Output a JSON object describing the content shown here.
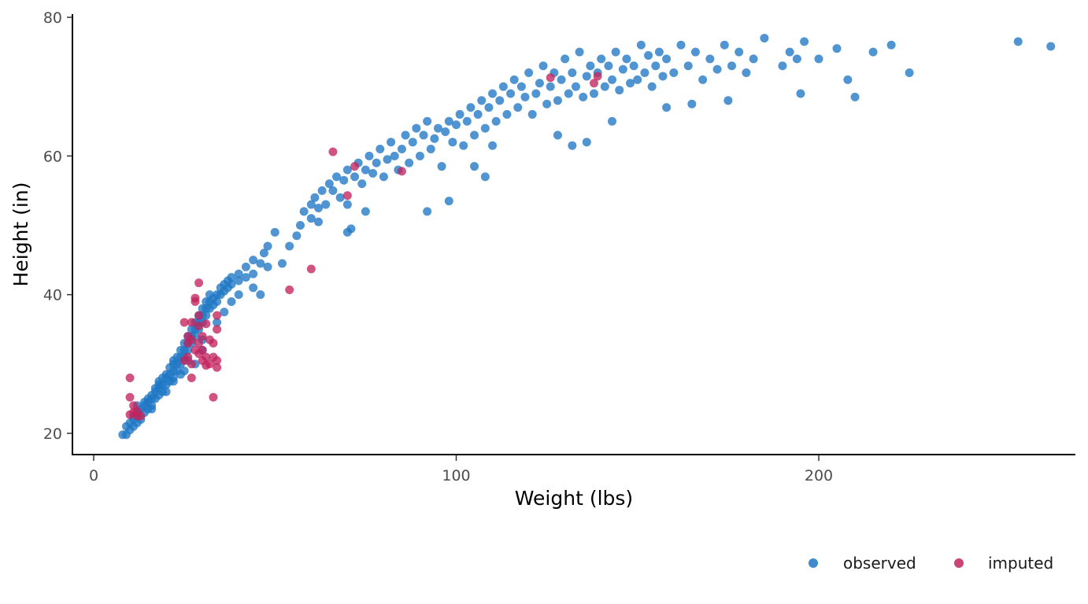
{
  "chart_data": {
    "type": "scatter",
    "title": "",
    "xlabel": "Weight (lbs)",
    "ylabel": "Height (in)",
    "xlim": [
      -6,
      272
    ],
    "ylim": [
      16.8,
      80.5
    ],
    "x_ticks": [
      0,
      100,
      200
    ],
    "y_ticks": [
      20,
      40,
      60,
      80
    ],
    "x_tick_labels": [
      "0",
      "100",
      "200"
    ],
    "y_tick_labels": [
      "20",
      "40",
      "60",
      "80"
    ],
    "grid": false,
    "legend_position": "bottom-right",
    "series": [
      {
        "name": "observed",
        "color": "#1f77c4",
        "points": [
          [
            8,
            19.8
          ],
          [
            9,
            19.8
          ],
          [
            9,
            21
          ],
          [
            10,
            20.5
          ],
          [
            10,
            21.5
          ],
          [
            11,
            21
          ],
          [
            11,
            22
          ],
          [
            11,
            22.5
          ],
          [
            12,
            21.5
          ],
          [
            12,
            22.5
          ],
          [
            12,
            23
          ],
          [
            13,
            22
          ],
          [
            13,
            23.5
          ],
          [
            14,
            23
          ],
          [
            14,
            24
          ],
          [
            14,
            24.5
          ],
          [
            15,
            23.5
          ],
          [
            15,
            24.5
          ],
          [
            15,
            25
          ],
          [
            16,
            24
          ],
          [
            16,
            25
          ],
          [
            16,
            25.5
          ],
          [
            17,
            25
          ],
          [
            17,
            26
          ],
          [
            17,
            26.5
          ],
          [
            18,
            25.5
          ],
          [
            18,
            26.5
          ],
          [
            18,
            27
          ],
          [
            19,
            26
          ],
          [
            19,
            27
          ],
          [
            19,
            28
          ],
          [
            20,
            27
          ],
          [
            20,
            28
          ],
          [
            20,
            28.5
          ],
          [
            21,
            27.5
          ],
          [
            21,
            28.5
          ],
          [
            21,
            29.5
          ],
          [
            22,
            28
          ],
          [
            22,
            29
          ],
          [
            22,
            30
          ],
          [
            23,
            29
          ],
          [
            23,
            30
          ],
          [
            23,
            31
          ],
          [
            24,
            30
          ],
          [
            24,
            31
          ],
          [
            24,
            32
          ],
          [
            25,
            31
          ],
          [
            25,
            32
          ],
          [
            25,
            33
          ],
          [
            26,
            32
          ],
          [
            26,
            33
          ],
          [
            26,
            34
          ],
          [
            27,
            33
          ],
          [
            27,
            34
          ],
          [
            27,
            35
          ],
          [
            28,
            34
          ],
          [
            28,
            35
          ],
          [
            28,
            36
          ],
          [
            29,
            35
          ],
          [
            29,
            36
          ],
          [
            29,
            37
          ],
          [
            30,
            36
          ],
          [
            30,
            37
          ],
          [
            30,
            38
          ],
          [
            31,
            37
          ],
          [
            31,
            38
          ],
          [
            31,
            39
          ],
          [
            32,
            38
          ],
          [
            32,
            39
          ],
          [
            32,
            40
          ],
          [
            33,
            38.5
          ],
          [
            33,
            39.5
          ],
          [
            34,
            39
          ],
          [
            34,
            40
          ],
          [
            35,
            40
          ],
          [
            35,
            41
          ],
          [
            36,
            40.5
          ],
          [
            36,
            41.5
          ],
          [
            37,
            41
          ],
          [
            37,
            42
          ],
          [
            38,
            41.5
          ],
          [
            38,
            42.5
          ],
          [
            40,
            42
          ],
          [
            40,
            43
          ],
          [
            42,
            42.5
          ],
          [
            42,
            44
          ],
          [
            44,
            43
          ],
          [
            44,
            45
          ],
          [
            46,
            44.5
          ],
          [
            47,
            46
          ],
          [
            48,
            47
          ],
          [
            50,
            49
          ],
          [
            54,
            47
          ],
          [
            56,
            48.5
          ],
          [
            57,
            50
          ],
          [
            58,
            52
          ],
          [
            60,
            51
          ],
          [
            60,
            53
          ],
          [
            61,
            54
          ],
          [
            62,
            52.5
          ],
          [
            63,
            55
          ],
          [
            64,
            53
          ],
          [
            65,
            56
          ],
          [
            66,
            55
          ],
          [
            67,
            57
          ],
          [
            68,
            54
          ],
          [
            69,
            56.5
          ],
          [
            70,
            58
          ],
          [
            70,
            53
          ],
          [
            71,
            49.5
          ],
          [
            72,
            57
          ],
          [
            73,
            59
          ],
          [
            74,
            56
          ],
          [
            75,
            58
          ],
          [
            76,
            60
          ],
          [
            77,
            57.5
          ],
          [
            78,
            59
          ],
          [
            79,
            61
          ],
          [
            80,
            57
          ],
          [
            81,
            59.5
          ],
          [
            82,
            62
          ],
          [
            83,
            60
          ],
          [
            84,
            58
          ],
          [
            85,
            61
          ],
          [
            86,
            63
          ],
          [
            87,
            59
          ],
          [
            88,
            62
          ],
          [
            89,
            64
          ],
          [
            90,
            60
          ],
          [
            91,
            63
          ],
          [
            92,
            65
          ],
          [
            93,
            61
          ],
          [
            94,
            62.5
          ],
          [
            95,
            64
          ],
          [
            96,
            58.5
          ],
          [
            97,
            63.5
          ],
          [
            98,
            65
          ],
          [
            99,
            62
          ],
          [
            100,
            64.5
          ],
          [
            101,
            66
          ],
          [
            102,
            61.5
          ],
          [
            103,
            65
          ],
          [
            104,
            67
          ],
          [
            105,
            63
          ],
          [
            106,
            66
          ],
          [
            107,
            68
          ],
          [
            108,
            64
          ],
          [
            109,
            67
          ],
          [
            110,
            69
          ],
          [
            111,
            65
          ],
          [
            112,
            68
          ],
          [
            113,
            70
          ],
          [
            114,
            66
          ],
          [
            115,
            69
          ],
          [
            116,
            71
          ],
          [
            117,
            67
          ],
          [
            118,
            70
          ],
          [
            119,
            68.5
          ],
          [
            120,
            72
          ],
          [
            121,
            66
          ],
          [
            122,
            69
          ],
          [
            123,
            70.5
          ],
          [
            124,
            73
          ],
          [
            125,
            67.5
          ],
          [
            126,
            70
          ],
          [
            127,
            72
          ],
          [
            128,
            68
          ],
          [
            129,
            71
          ],
          [
            130,
            74
          ],
          [
            131,
            69
          ],
          [
            132,
            72
          ],
          [
            133,
            70
          ],
          [
            134,
            75
          ],
          [
            135,
            68.5
          ],
          [
            136,
            71.5
          ],
          [
            137,
            73
          ],
          [
            138,
            69
          ],
          [
            139,
            72
          ],
          [
            140,
            74
          ],
          [
            141,
            70
          ],
          [
            142,
            73
          ],
          [
            143,
            71
          ],
          [
            144,
            75
          ],
          [
            145,
            69.5
          ],
          [
            146,
            72.5
          ],
          [
            147,
            74
          ],
          [
            148,
            70.5
          ],
          [
            149,
            73
          ],
          [
            150,
            71
          ],
          [
            151,
            76
          ],
          [
            152,
            72
          ],
          [
            153,
            74.5
          ],
          [
            154,
            70
          ],
          [
            155,
            73
          ],
          [
            156,
            75
          ],
          [
            157,
            71.5
          ],
          [
            158,
            74
          ],
          [
            160,
            72
          ],
          [
            162,
            76
          ],
          [
            164,
            73
          ],
          [
            166,
            75
          ],
          [
            168,
            71
          ],
          [
            170,
            74
          ],
          [
            172,
            72.5
          ],
          [
            174,
            76
          ],
          [
            176,
            73
          ],
          [
            178,
            75
          ],
          [
            180,
            72
          ],
          [
            182,
            74
          ],
          [
            185,
            77
          ],
          [
            190,
            73
          ],
          [
            192,
            75
          ],
          [
            194,
            74
          ],
          [
            196,
            76.5
          ],
          [
            200,
            74
          ],
          [
            205,
            75.5
          ],
          [
            208,
            71
          ],
          [
            210,
            68.5
          ],
          [
            215,
            75
          ],
          [
            220,
            76
          ],
          [
            225,
            72
          ],
          [
            255,
            76.5
          ],
          [
            264,
            75.8
          ],
          [
            62,
            50.5
          ],
          [
            70,
            49
          ],
          [
            75,
            52
          ],
          [
            92,
            52
          ],
          [
            98,
            53.5
          ],
          [
            105,
            58.5
          ],
          [
            108,
            57
          ],
          [
            110,
            61.5
          ],
          [
            128,
            63
          ],
          [
            132,
            61.5
          ],
          [
            136,
            62
          ],
          [
            143,
            65
          ],
          [
            158,
            67
          ],
          [
            165,
            67.5
          ],
          [
            175,
            68
          ],
          [
            195,
            69
          ],
          [
            12,
            24
          ],
          [
            16,
            23.5
          ],
          [
            20,
            26
          ],
          [
            22,
            27.5
          ],
          [
            25,
            29
          ],
          [
            28,
            30
          ],
          [
            30,
            32
          ],
          [
            34,
            36
          ],
          [
            36,
            37.5
          ],
          [
            38,
            39
          ],
          [
            40,
            40
          ],
          [
            44,
            41
          ],
          [
            46,
            40
          ],
          [
            48,
            44
          ],
          [
            52,
            44.5
          ],
          [
            30,
            33.5
          ],
          [
            26,
            30.5
          ],
          [
            24,
            28.5
          ],
          [
            22,
            30.5
          ],
          [
            18,
            27.5
          ]
        ]
      },
      {
        "name": "imputed",
        "color": "#c1245e",
        "points": [
          [
            10,
            28
          ],
          [
            10,
            25.2
          ],
          [
            11,
            24
          ],
          [
            11,
            23
          ],
          [
            12,
            22.5
          ],
          [
            13,
            22.5
          ],
          [
            10,
            22.7
          ],
          [
            12,
            23.2
          ],
          [
            25,
            36
          ],
          [
            26,
            34
          ],
          [
            26,
            33
          ],
          [
            26,
            31
          ],
          [
            27,
            30
          ],
          [
            27,
            28
          ],
          [
            27,
            36
          ],
          [
            28,
            39.5
          ],
          [
            28,
            39
          ],
          [
            29,
            41.7
          ],
          [
            29,
            37
          ],
          [
            29,
            35.5
          ],
          [
            29,
            33
          ],
          [
            29,
            31.5
          ],
          [
            30,
            30.5
          ],
          [
            30,
            34
          ],
          [
            30,
            32
          ],
          [
            31,
            35.8
          ],
          [
            31,
            31
          ],
          [
            31,
            29.8
          ],
          [
            32,
            33.5
          ],
          [
            32,
            30
          ],
          [
            33,
            33
          ],
          [
            33,
            25.2
          ],
          [
            33,
            31
          ],
          [
            34,
            35
          ],
          [
            34,
            37
          ],
          [
            34,
            29.5
          ],
          [
            34,
            30.5
          ],
          [
            28,
            32
          ],
          [
            25,
            30.5
          ],
          [
            27,
            33.5
          ],
          [
            54,
            40.7
          ],
          [
            60,
            43.7
          ],
          [
            66,
            60.6
          ],
          [
            70,
            54.3
          ],
          [
            72,
            58.5
          ],
          [
            85,
            57.8
          ],
          [
            126,
            71.3
          ],
          [
            138,
            70.5
          ],
          [
            139,
            71.5
          ]
        ]
      }
    ]
  },
  "legend": {
    "items": [
      {
        "label": "observed",
        "color": "#1f77c4"
      },
      {
        "label": "imputed",
        "color": "#c1245e"
      }
    ]
  }
}
